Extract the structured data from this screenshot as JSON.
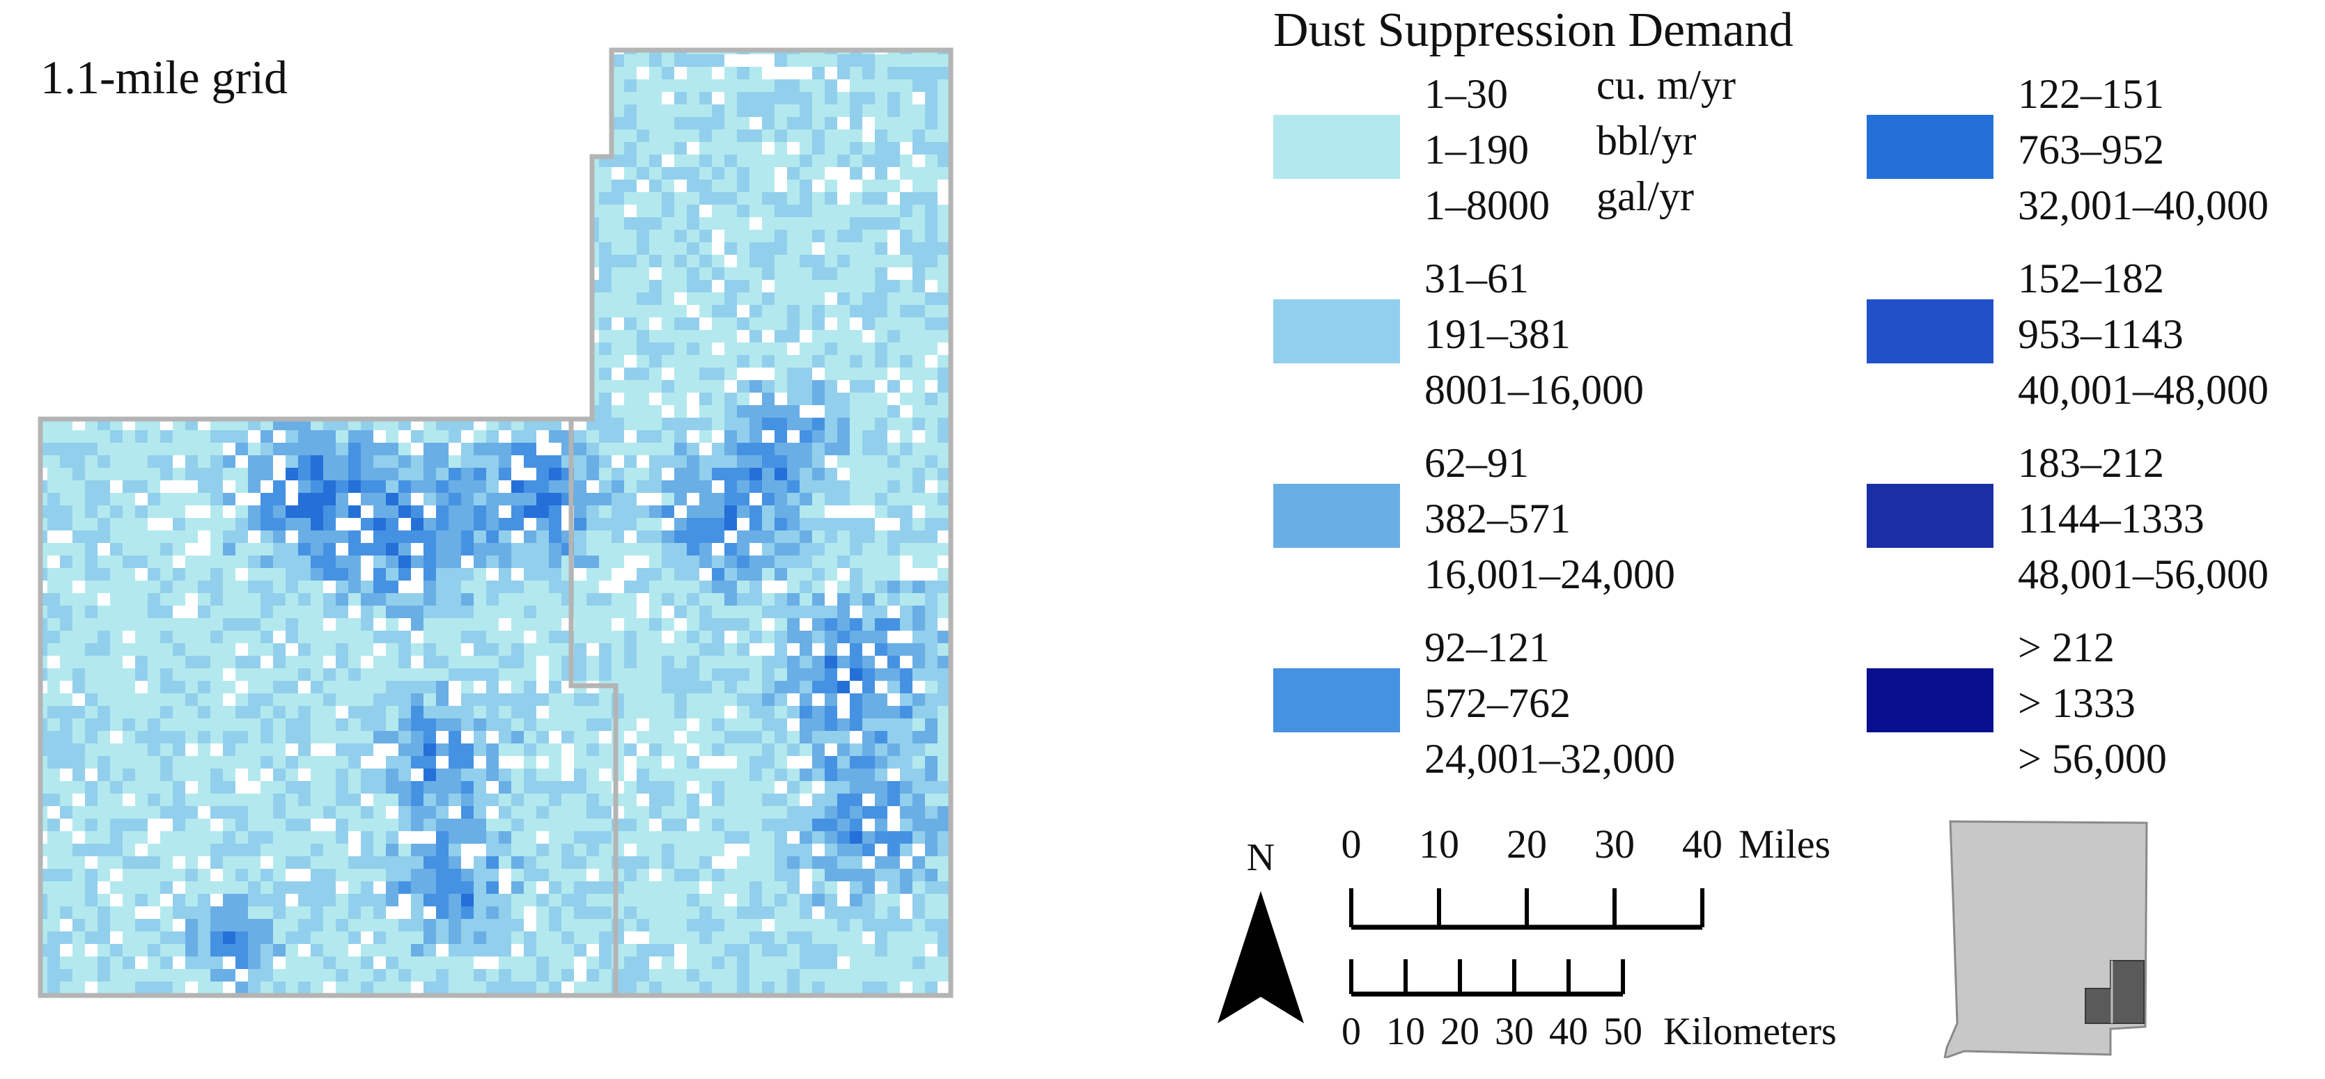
{
  "map": {
    "grid_label": "1.1-mile grid",
    "palette": [
      "#b3e9ee",
      "#92cfec",
      "#6aaee6",
      "#4592e3",
      "#2470d8",
      "#2150c8",
      "#1a2fa6",
      "#0a0f8f"
    ],
    "boundary_color": "#b4b4b4"
  },
  "legend": {
    "title": "Dust Suppression Demand",
    "units": [
      "cu. m/yr",
      "bbl/yr",
      "gal/yr"
    ],
    "classes": [
      {
        "color": "#b3e9ee",
        "labels": [
          "1–30",
          "1–190",
          "1–8000"
        ]
      },
      {
        "color": "#92cfec",
        "labels": [
          "31–61",
          "191–381",
          "8001–16,000"
        ]
      },
      {
        "color": "#6aaee6",
        "labels": [
          "62–91",
          "382–571",
          "16,001–24,000"
        ]
      },
      {
        "color": "#4592e3",
        "labels": [
          "92–121",
          "572–762",
          "24,001–32,000"
        ]
      },
      {
        "color": "#2470d8",
        "labels": [
          "122–151",
          "763–952",
          "32,001–40,000"
        ]
      },
      {
        "color": "#2150c8",
        "labels": [
          "152–182",
          "953–1143",
          "40,001–48,000"
        ]
      },
      {
        "color": "#1a2fa6",
        "labels": [
          "183–212",
          "1144–1333",
          "48,001–56,000"
        ]
      },
      {
        "color": "#0a0f8f",
        "labels": [
          "> 212",
          "> 1333",
          "> 56,000"
        ]
      }
    ]
  },
  "scale": {
    "miles_label": "Miles",
    "miles_ticks": [
      "0",
      "10",
      "20",
      "30",
      "40"
    ],
    "km_label": "Kilometers",
    "km_ticks": [
      "0",
      "10",
      "20",
      "30",
      "40",
      "50"
    ]
  },
  "north_arrow": {
    "label": "N"
  },
  "inset": {
    "state_fill": "#c8c8c8",
    "highlight_fill": "#5a5a5a"
  }
}
